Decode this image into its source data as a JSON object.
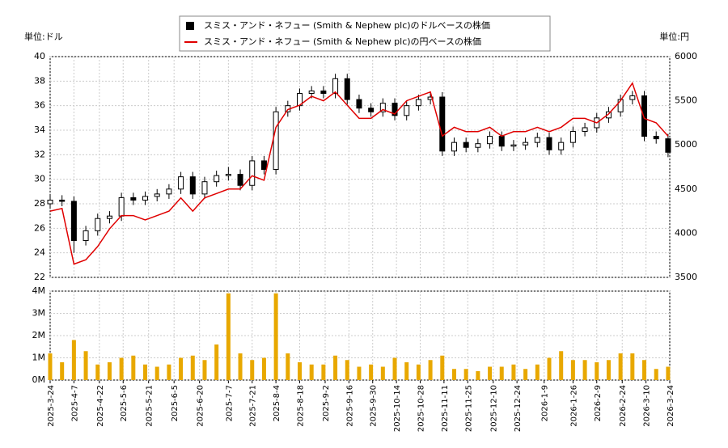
{
  "chart_data": [
    {
      "type": "candlestick",
      "left_axis_label": "単位:ドル",
      "right_axis_label": "単位:円",
      "grid": true,
      "x": [
        "2025-3-24",
        "2025-3-31",
        "2025-4-7",
        "2025-4-14",
        "2025-4-21",
        "2025-4-28",
        "2025-5-5",
        "2025-5-12",
        "2025-5-19",
        "2025-5-26",
        "2025-6-2",
        "2025-6-9",
        "2025-6-16",
        "2025-6-23",
        "2025-6-30",
        "2025-7-7",
        "2025-7-14",
        "2025-7-21",
        "2025-7-28",
        "2025-8-4",
        "2025-8-11",
        "2025-8-18",
        "2025-8-25",
        "2025-9-1",
        "2025-9-8",
        "2025-9-15",
        "2025-9-22",
        "2025-9-29",
        "2025-10-6",
        "2025-10-13",
        "2025-10-20",
        "2025-10-27",
        "2025-11-3",
        "2025-11-10",
        "2025-11-17",
        "2025-11-24",
        "2025-12-1",
        "2025-12-8",
        "2025-12-15",
        "2025-12-22",
        "2025-12-29",
        "2026-1-5",
        "2026-1-12",
        "2026-1-19",
        "2026-1-26",
        "2026-2-2",
        "2026-2-9",
        "2026-2-16",
        "2026-2-23",
        "2026-3-2",
        "2026-3-9",
        "2026-3-16",
        "2026-3-23"
      ],
      "xlim": [
        "2025-3-24",
        "2026-3-24"
      ],
      "ylim": [
        22,
        40
      ],
      "yticks": [
        22,
        24,
        26,
        28,
        30,
        32,
        34,
        36,
        38,
        40
      ],
      "y2lim": [
        3500,
        6000
      ],
      "y2ticks": [
        3500,
        4000,
        4500,
        5000,
        5500,
        6000
      ],
      "series": [
        {
          "name": "スミス・アンド・ネフュー (Smith & Nephew plc)のドルベースの株価",
          "color": "#000000",
          "open": [
            28.0,
            28.3,
            28.2,
            25.0,
            25.8,
            26.8,
            27.0,
            28.5,
            28.3,
            28.6,
            28.8,
            29.2,
            30.2,
            28.8,
            29.8,
            30.3,
            30.4,
            29.5,
            31.5,
            30.8,
            35.5,
            36.0,
            37.0,
            37.2,
            37.0,
            38.2,
            36.5,
            35.8,
            35.5,
            36.2,
            35.2,
            36.0,
            36.5,
            36.7,
            32.3,
            33.0,
            32.6,
            32.9,
            33.5,
            32.7,
            32.8,
            33.0,
            33.4,
            32.4,
            33.0,
            33.9,
            34.2,
            35.0,
            35.5,
            36.5,
            36.8,
            33.5,
            33.3
          ],
          "high": [
            28.7,
            28.7,
            28.6,
            26.2,
            27.2,
            27.4,
            28.9,
            28.9,
            29.0,
            29.2,
            29.6,
            30.6,
            30.6,
            30.2,
            30.7,
            31.0,
            30.8,
            31.9,
            31.9,
            35.9,
            36.4,
            37.4,
            37.6,
            37.6,
            38.6,
            38.6,
            36.9,
            36.2,
            36.6,
            36.6,
            36.4,
            36.9,
            37.1,
            37.1,
            33.4,
            33.4,
            33.3,
            33.9,
            33.9,
            33.2,
            33.4,
            33.8,
            33.8,
            33.4,
            34.3,
            34.6,
            35.4,
            35.9,
            36.9,
            37.2,
            37.2,
            33.9,
            33.7
          ],
          "low": [
            27.6,
            27.8,
            24.0,
            24.6,
            25.4,
            26.4,
            26.6,
            27.9,
            27.9,
            28.2,
            28.4,
            28.8,
            28.4,
            28.4,
            29.4,
            29.9,
            29.1,
            29.1,
            30.4,
            30.4,
            35.1,
            35.6,
            36.6,
            36.6,
            36.6,
            36.1,
            35.4,
            35.1,
            35.1,
            34.8,
            34.8,
            35.6,
            36.1,
            31.9,
            31.9,
            32.2,
            32.2,
            32.5,
            32.3,
            32.3,
            32.4,
            32.6,
            32.0,
            32.0,
            32.6,
            33.5,
            33.8,
            34.6,
            35.1,
            36.1,
            33.1,
            32.9,
            31.8
          ],
          "close": [
            28.3,
            28.2,
            25.0,
            25.8,
            26.8,
            27.0,
            28.5,
            28.3,
            28.6,
            28.8,
            29.2,
            30.2,
            28.8,
            29.8,
            30.3,
            30.4,
            29.5,
            31.5,
            30.8,
            35.5,
            36.0,
            37.0,
            37.2,
            37.0,
            38.2,
            36.5,
            35.8,
            35.5,
            36.2,
            35.2,
            36.0,
            36.5,
            36.7,
            32.3,
            33.0,
            32.6,
            32.9,
            33.5,
            32.7,
            32.8,
            33.0,
            33.4,
            32.4,
            33.0,
            33.9,
            34.2,
            35.0,
            35.5,
            36.5,
            36.8,
            33.5,
            33.3,
            32.2
          ]
        },
        {
          "name": "スミス・アンド・ネフュー (Smith & Nephew plc)の円ベースの株価",
          "color": "#e00000",
          "axis": "y2",
          "values": [
            4250,
            4280,
            3650,
            3700,
            3850,
            4050,
            4200,
            4200,
            4150,
            4200,
            4250,
            4400,
            4250,
            4400,
            4450,
            4500,
            4500,
            4650,
            4600,
            5200,
            5400,
            5450,
            5550,
            5500,
            5600,
            5450,
            5300,
            5300,
            5400,
            5350,
            5500,
            5550,
            5600,
            5100,
            5200,
            5150,
            5150,
            5200,
            5100,
            5150,
            5150,
            5200,
            5150,
            5200,
            5300,
            5300,
            5250,
            5350,
            5500,
            5700,
            5300,
            5250,
            5100
          ]
        }
      ]
    },
    {
      "type": "bar",
      "color": "#e8a800",
      "grid": true,
      "ylim": [
        0,
        4000000
      ],
      "yticks": [
        {
          "value": 0,
          "label": "0M"
        },
        {
          "value": 1000000,
          "label": "1M"
        },
        {
          "value": 2000000,
          "label": "2M"
        },
        {
          "value": 3000000,
          "label": "3M"
        },
        {
          "value": 4000000,
          "label": "4M"
        }
      ],
      "xticks": [
        "2025-3-24",
        "2025-4-7",
        "2025-4-22",
        "2025-5-6",
        "2025-5-21",
        "2025-6-5",
        "2025-6-20",
        "2025-7-7",
        "2025-7-21",
        "2025-8-4",
        "2025-8-18",
        "2025-9-2",
        "2025-9-16",
        "2025-9-30",
        "2025-10-14",
        "2025-10-28",
        "2025-11-11",
        "2025-11-25",
        "2025-12-10",
        "2025-12-24",
        "2026-1-9",
        "2026-1-26",
        "2026-2-9",
        "2026-2-24",
        "2026-3-10",
        "2026-3-24"
      ],
      "values": [
        1200000,
        800000,
        1800000,
        1300000,
        700000,
        800000,
        1000000,
        1100000,
        700000,
        600000,
        700000,
        1000000,
        1100000,
        900000,
        1600000,
        3900000,
        1200000,
        900000,
        1000000,
        3900000,
        1200000,
        800000,
        700000,
        700000,
        1100000,
        900000,
        600000,
        700000,
        600000,
        1000000,
        800000,
        700000,
        900000,
        1100000,
        500000,
        500000,
        400000,
        600000,
        600000,
        700000,
        500000,
        700000,
        1000000,
        1300000,
        900000,
        900000,
        800000,
        900000,
        1200000,
        1200000,
        900000,
        500000,
        600000
      ]
    }
  ]
}
